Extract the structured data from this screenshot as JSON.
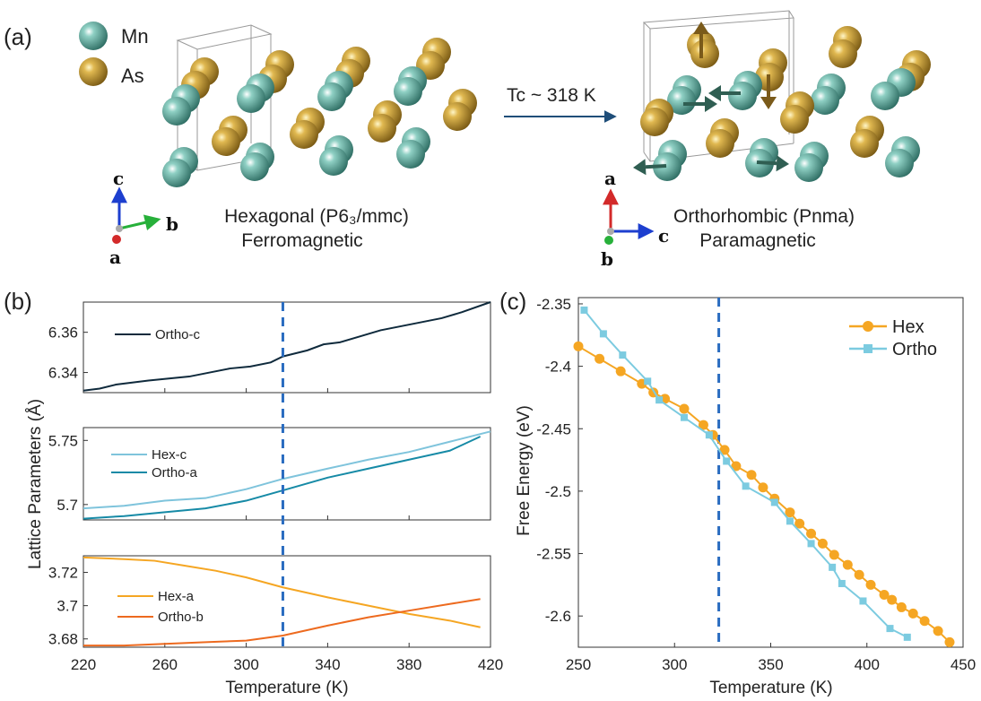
{
  "panel_labels": {
    "a": "(a)",
    "b": "(b)",
    "c": "(c)"
  },
  "structure": {
    "legend": [
      {
        "name": "Mn",
        "color": "#5fa89c"
      },
      {
        "name": "As",
        "color": "#c9a040"
      }
    ],
    "transition_label": "Tc ~ 318 K",
    "left": {
      "title": "Hexagonal (P6₃/mmc)",
      "subtitle": "Ferromagnetic",
      "axes": {
        "up": "c",
        "right": "b",
        "down": "a"
      }
    },
    "right": {
      "title": "Orthorhombic (Pnma)",
      "subtitle": "Paramagnetic",
      "axes": {
        "up": "a",
        "right": "c",
        "down": "b"
      }
    },
    "colors": {
      "mn": "#5fa89c",
      "as": "#c9a040",
      "spin_mn": "#2f5e52",
      "spin_as": "#7a5a1a",
      "arrow": "#1f4e79"
    }
  },
  "chart_data": [
    {
      "type": "line",
      "panel": "b",
      "xlabel": "Temperature (K)",
      "ylabel": "Lattice Parameters (Å)",
      "xlim": [
        220,
        420
      ],
      "xticks": [
        "220",
        "260",
        "300",
        "340",
        "380",
        "420"
      ],
      "vline": 318,
      "subplots": [
        {
          "ylim": [
            6.33,
            6.375
          ],
          "yticks": [
            "6.34",
            "6.36"
          ],
          "series": [
            {
              "name": "Ortho-c",
              "color": "#0f2a3c",
              "x": [
                220,
                228,
                236,
                244,
                252,
                262,
                272,
                282,
                292,
                302,
                312,
                318,
                322,
                330,
                338,
                346,
                356,
                366,
                376,
                386,
                396,
                406,
                420
              ],
              "values": [
                6.331,
                6.332,
                6.334,
                6.335,
                6.336,
                6.337,
                6.338,
                6.34,
                6.342,
                6.343,
                6.345,
                6.348,
                6.349,
                6.351,
                6.354,
                6.355,
                6.358,
                6.361,
                6.363,
                6.365,
                6.367,
                6.37,
                6.375
              ]
            }
          ]
        },
        {
          "ylim": [
            5.688,
            5.76
          ],
          "yticks": [
            "5.7",
            "5.75"
          ],
          "series": [
            {
              "name": "Hex-c",
              "color": "#7fc4dc",
              "x": [
                220,
                240,
                260,
                280,
                300,
                318,
                340,
                360,
                380,
                400,
                420
              ],
              "values": [
                5.697,
                5.699,
                5.703,
                5.705,
                5.712,
                5.72,
                5.728,
                5.735,
                5.741,
                5.749,
                5.757
              ]
            },
            {
              "name": "Ortho-a",
              "color": "#168aa6",
              "x": [
                220,
                240,
                260,
                280,
                300,
                318,
                340,
                360,
                380,
                400,
                415
              ],
              "values": [
                5.689,
                5.691,
                5.694,
                5.697,
                5.703,
                5.711,
                5.721,
                5.728,
                5.735,
                5.742,
                5.753
              ]
            }
          ]
        },
        {
          "ylim": [
            3.675,
            3.73
          ],
          "yticks": [
            "3.68",
            "3.7",
            "3.72"
          ],
          "series": [
            {
              "name": "Hex-a",
              "color": "#f5a623",
              "x": [
                220,
                240,
                255,
                270,
                285,
                300,
                318,
                340,
                360,
                380,
                400,
                415
              ],
              "values": [
                3.729,
                3.728,
                3.727,
                3.724,
                3.721,
                3.717,
                3.711,
                3.705,
                3.7,
                3.695,
                3.691,
                3.687
              ]
            },
            {
              "name": "Ortho-b",
              "color": "#ed6a1f",
              "x": [
                220,
                240,
                260,
                280,
                300,
                318,
                340,
                360,
                380,
                400,
                415
              ],
              "values": [
                3.676,
                3.676,
                3.677,
                3.678,
                3.679,
                3.682,
                3.688,
                3.693,
                3.697,
                3.701,
                3.704
              ]
            }
          ]
        }
      ]
    },
    {
      "type": "line",
      "panel": "c",
      "xlabel": "Temperature (K)",
      "ylabel": "Free Energy (eV)",
      "xlim": [
        250,
        450
      ],
      "ylim": [
        -2.625,
        -2.345
      ],
      "xticks": [
        "250",
        "300",
        "350",
        "400",
        "450"
      ],
      "yticks": [
        "-2.35",
        "-2.4",
        "-2.45",
        "-2.5",
        "-2.55",
        "-2.6"
      ],
      "vline": 323,
      "legend": "top-right",
      "series": [
        {
          "name": "Hex",
          "color": "#f5a623",
          "marker": "circle",
          "x": [
            250,
            261,
            272,
            283,
            289,
            295,
            305,
            315,
            320,
            326,
            332,
            340,
            346,
            352,
            360,
            365,
            371,
            377,
            383,
            390,
            396,
            402,
            409,
            413,
            418,
            424,
            430,
            437,
            443
          ],
          "values": [
            -2.384,
            -2.394,
            -2.404,
            -2.414,
            -2.421,
            -2.426,
            -2.434,
            -2.447,
            -2.455,
            -2.467,
            -2.48,
            -2.487,
            -2.497,
            -2.506,
            -2.517,
            -2.526,
            -2.534,
            -2.542,
            -2.551,
            -2.559,
            -2.567,
            -2.575,
            -2.583,
            -2.587,
            -2.593,
            -2.598,
            -2.604,
            -2.612,
            -2.621
          ]
        },
        {
          "name": "Ortho",
          "color": "#7ccbe0",
          "marker": "square",
          "x": [
            253,
            263,
            273,
            286,
            292,
            305,
            318,
            327,
            337,
            352,
            360,
            371,
            382,
            387,
            398,
            412,
            421
          ],
          "values": [
            -2.355,
            -2.374,
            -2.391,
            -2.412,
            -2.427,
            -2.441,
            -2.455,
            -2.476,
            -2.496,
            -2.509,
            -2.524,
            -2.542,
            -2.561,
            -2.574,
            -2.588,
            -2.61,
            -2.617
          ]
        }
      ]
    }
  ]
}
